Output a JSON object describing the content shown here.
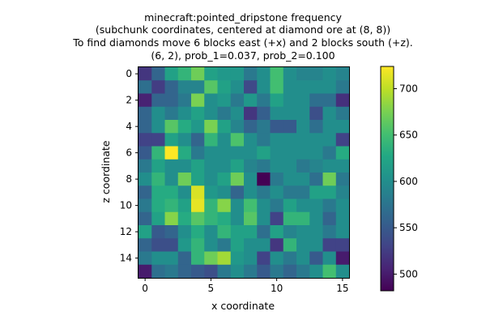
{
  "chart_data": {
    "type": "heatmap",
    "title_lines": [
      "minecraft:pointed_dripstone frequency",
      "(subchunk coordinates, centered at diamond ore at (8, 8))",
      "To find diamonds move 6 blocks east (+x) and 2 blocks south (+z).",
      "(6, 2), prob_1=0.037, prob_2=0.100"
    ],
    "xlabel": "x coordinate",
    "ylabel": "z coordinate",
    "x_ticks": [
      "0",
      "5",
      "10",
      "15"
    ],
    "x_tick_values": [
      0,
      5,
      10,
      15
    ],
    "y_ticks": [
      "0",
      "2",
      "4",
      "6",
      "8",
      "10",
      "12",
      "14"
    ],
    "y_tick_values": [
      0,
      2,
      4,
      6,
      8,
      10,
      12,
      14
    ],
    "colorbar_ticks": [
      "500",
      "550",
      "600",
      "650",
      "700"
    ],
    "colorbar_tick_values": [
      500,
      550,
      600,
      650,
      700
    ],
    "vmin": 482,
    "vmax": 724,
    "colormap": "viridis",
    "grid_size": [
      16,
      16
    ],
    "values": [
      [
        520,
        560,
        620,
        640,
        670,
        620,
        610,
        610,
        580,
        600,
        650,
        600,
        590,
        590,
        600,
        590
      ],
      [
        570,
        525,
        560,
        590,
        590,
        660,
        620,
        600,
        535,
        600,
        650,
        600,
        600,
        600,
        600,
        580
      ],
      [
        505,
        560,
        560,
        580,
        675,
        600,
        610,
        580,
        610,
        580,
        620,
        600,
        600,
        570,
        570,
        515
      ],
      [
        560,
        600,
        580,
        600,
        620,
        600,
        580,
        600,
        520,
        555,
        600,
        600,
        600,
        540,
        600,
        580
      ],
      [
        560,
        600,
        660,
        630,
        610,
        675,
        620,
        590,
        560,
        580,
        550,
        550,
        600,
        570,
        600,
        600
      ],
      [
        530,
        530,
        620,
        600,
        560,
        640,
        600,
        655,
        600,
        580,
        600,
        600,
        600,
        600,
        600,
        530
      ],
      [
        550,
        640,
        724,
        630,
        580,
        600,
        600,
        600,
        600,
        620,
        600,
        600,
        600,
        600,
        580,
        630
      ],
      [
        580,
        620,
        600,
        600,
        620,
        600,
        600,
        620,
        590,
        580,
        600,
        600,
        580,
        590,
        600,
        600
      ],
      [
        600,
        640,
        600,
        670,
        620,
        600,
        620,
        670,
        600,
        482,
        580,
        600,
        600,
        570,
        670,
        580
      ],
      [
        560,
        630,
        630,
        600,
        710,
        610,
        600,
        560,
        600,
        580,
        600,
        580,
        580,
        620,
        620,
        590
      ],
      [
        580,
        630,
        640,
        620,
        715,
        640,
        680,
        600,
        650,
        600,
        580,
        620,
        600,
        600,
        580,
        600
      ],
      [
        560,
        620,
        680,
        630,
        660,
        640,
        630,
        600,
        660,
        600,
        530,
        640,
        640,
        600,
        560,
        600
      ],
      [
        620,
        550,
        560,
        600,
        630,
        600,
        640,
        620,
        620,
        570,
        620,
        590,
        600,
        600,
        580,
        600
      ],
      [
        560,
        540,
        540,
        610,
        640,
        600,
        580,
        620,
        600,
        600,
        520,
        640,
        600,
        600,
        530,
        530
      ],
      [
        580,
        600,
        600,
        560,
        640,
        670,
        690,
        610,
        600,
        530,
        600,
        580,
        600,
        550,
        600,
        500
      ],
      [
        500,
        570,
        580,
        560,
        550,
        540,
        580,
        600,
        580,
        550,
        580,
        560,
        580,
        600,
        650,
        600
      ]
    ]
  }
}
